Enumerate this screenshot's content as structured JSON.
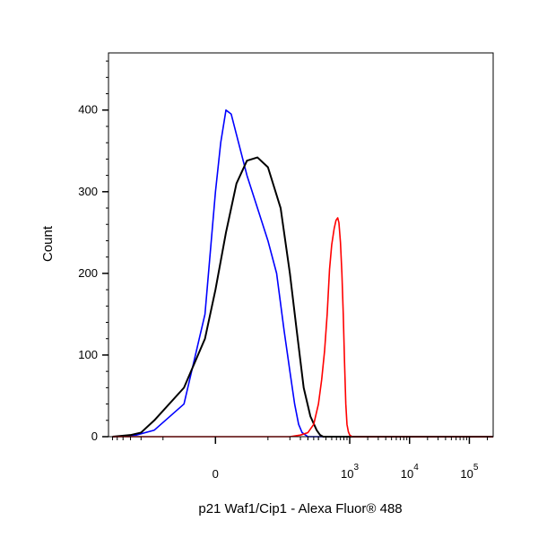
{
  "chart_data": {
    "type": "line",
    "title": "",
    "xlabel": "p21 Waf1/Cip1 - Alexa Fluor® 488",
    "ylabel": "Count",
    "x_scale": "biexponential",
    "xlim": [
      -350,
      250000
    ],
    "ylim": [
      0,
      470
    ],
    "grid": false,
    "legend": "none",
    "x_ticks": [
      {
        "value": 0,
        "label": "0",
        "sup": ""
      },
      {
        "value": 1000,
        "label": "10",
        "sup": "3"
      },
      {
        "value": 10000,
        "label": "10",
        "sup": "4"
      },
      {
        "value": 100000,
        "label": "10",
        "sup": "5"
      }
    ],
    "y_ticks": [
      0,
      100,
      200,
      300,
      400
    ],
    "series": [
      {
        "color": "#0000ff",
        "points": [
          [
            -300,
            0
          ],
          [
            -120,
            2
          ],
          [
            -60,
            8
          ],
          [
            -30,
            40
          ],
          [
            -10,
            150
          ],
          [
            0,
            300
          ],
          [
            5,
            360
          ],
          [
            10,
            400
          ],
          [
            15,
            395
          ],
          [
            20,
            370
          ],
          [
            30,
            320
          ],
          [
            40,
            280
          ],
          [
            50,
            240
          ],
          [
            60,
            200
          ],
          [
            80,
            130
          ],
          [
            100,
            80
          ],
          [
            120,
            40
          ],
          [
            140,
            15
          ],
          [
            160,
            5
          ],
          [
            200,
            0
          ],
          [
            250000,
            0
          ]
        ]
      },
      {
        "color": "#000000",
        "points": [
          [
            -300,
            0
          ],
          [
            -150,
            2
          ],
          [
            -100,
            5
          ],
          [
            -60,
            20
          ],
          [
            -30,
            60
          ],
          [
            -10,
            120
          ],
          [
            0,
            180
          ],
          [
            10,
            250
          ],
          [
            20,
            310
          ],
          [
            30,
            338
          ],
          [
            40,
            342
          ],
          [
            50,
            330
          ],
          [
            70,
            280
          ],
          [
            100,
            200
          ],
          [
            130,
            130
          ],
          [
            170,
            60
          ],
          [
            220,
            25
          ],
          [
            280,
            8
          ],
          [
            320,
            2
          ],
          [
            360,
            0
          ],
          [
            250000,
            0
          ]
        ]
      },
      {
        "color": "#ff0000",
        "points": [
          [
            -300,
            0
          ],
          [
            100,
            0
          ],
          [
            150,
            2
          ],
          [
            200,
            5
          ],
          [
            250,
            15
          ],
          [
            300,
            40
          ],
          [
            340,
            70
          ],
          [
            380,
            105
          ],
          [
            420,
            150
          ],
          [
            460,
            205
          ],
          [
            500,
            235
          ],
          [
            550,
            255
          ],
          [
            590,
            265
          ],
          [
            630,
            268
          ],
          [
            660,
            262
          ],
          [
            700,
            238
          ],
          [
            740,
            200
          ],
          [
            780,
            150
          ],
          [
            820,
            90
          ],
          [
            860,
            40
          ],
          [
            900,
            15
          ],
          [
            950,
            6
          ],
          [
            1000,
            2
          ],
          [
            1100,
            0
          ],
          [
            250000,
            0
          ]
        ]
      }
    ]
  }
}
